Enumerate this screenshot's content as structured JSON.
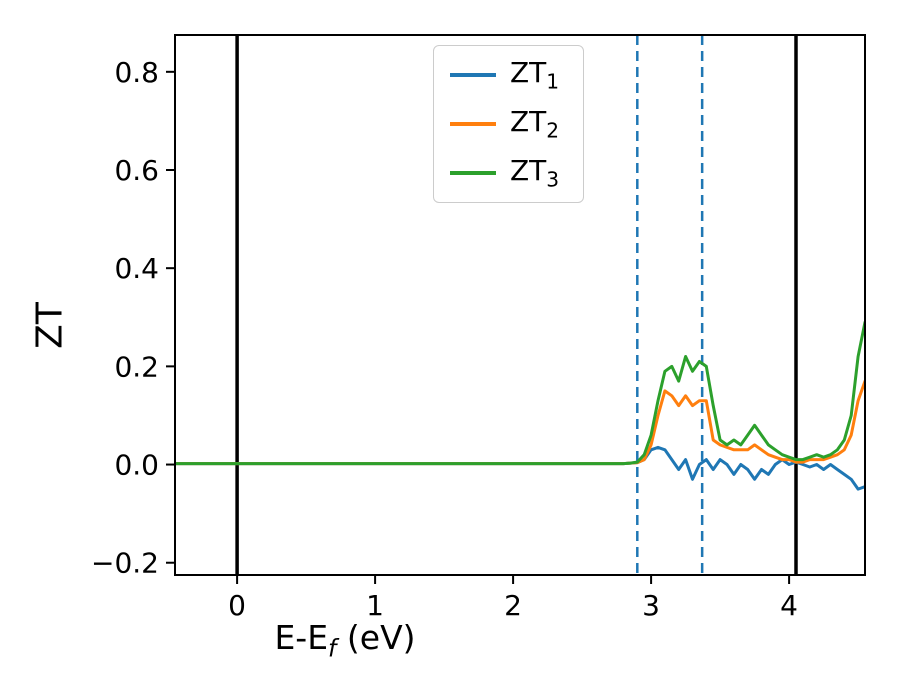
{
  "figure": {
    "background": "#ffffff"
  },
  "chart_data": {
    "type": "line",
    "title": "",
    "ylabel": "ZT",
    "xlabel_parts": {
      "prefix": "E-E",
      "sub": "f",
      "suffix": " (eV)"
    },
    "xlim": [
      -0.45,
      4.55
    ],
    "ylim": [
      -0.225,
      0.875
    ],
    "grid": false,
    "legend_position": "upper center",
    "x_ticks": [
      {
        "v": 0,
        "label": "0"
      },
      {
        "v": 1,
        "label": "1"
      },
      {
        "v": 2,
        "label": "2"
      },
      {
        "v": 3,
        "label": "3"
      },
      {
        "v": 4,
        "label": "4"
      }
    ],
    "y_ticks": [
      {
        "v": -0.2,
        "label": "−0.2"
      },
      {
        "v": 0.0,
        "label": "0.0"
      },
      {
        "v": 0.2,
        "label": "0.2"
      },
      {
        "v": 0.4,
        "label": "0.4"
      },
      {
        "v": 0.6,
        "label": "0.6"
      },
      {
        "v": 0.8,
        "label": "0.8"
      }
    ],
    "vlines_solid": {
      "x": [
        0.0,
        4.05
      ],
      "color": "#000000",
      "width": 3.5
    },
    "vlines_dashed": {
      "x": [
        2.9,
        3.37
      ],
      "color": "#1f77b4",
      "width": 2.5,
      "dash": "10 6"
    },
    "x": [
      -0.45,
      0.0,
      0.5,
      1.0,
      1.5,
      2.0,
      2.5,
      2.8,
      2.85,
      2.9,
      2.95,
      3.0,
      3.05,
      3.1,
      3.15,
      3.2,
      3.25,
      3.3,
      3.35,
      3.4,
      3.45,
      3.5,
      3.55,
      3.6,
      3.65,
      3.7,
      3.75,
      3.8,
      3.85,
      3.9,
      3.95,
      4.0,
      4.05,
      4.1,
      4.15,
      4.2,
      4.25,
      4.3,
      4.35,
      4.4,
      4.45,
      4.5,
      4.55
    ],
    "series": [
      {
        "name": "ZT1",
        "label_base": "ZT",
        "label_sub": "1",
        "color": "#1f77b4",
        "values": [
          0.002,
          0.002,
          0.002,
          0.002,
          0.002,
          0.002,
          0.002,
          0.002,
          0.003,
          0.004,
          0.01,
          0.03,
          0.035,
          0.03,
          0.01,
          -0.01,
          0.01,
          -0.03,
          0.0,
          0.01,
          -0.01,
          0.01,
          0.0,
          -0.02,
          0.0,
          -0.01,
          -0.03,
          -0.01,
          -0.02,
          0.0,
          0.01,
          0.0,
          0.005,
          0.0,
          -0.005,
          0.0,
          -0.01,
          0.0,
          -0.01,
          -0.02,
          -0.03,
          -0.05,
          -0.045
        ]
      },
      {
        "name": "ZT2",
        "label_base": "ZT",
        "label_sub": "2",
        "color": "#ff7f0e",
        "values": [
          0.002,
          0.002,
          0.002,
          0.002,
          0.002,
          0.002,
          0.002,
          0.002,
          0.003,
          0.004,
          0.01,
          0.04,
          0.1,
          0.15,
          0.14,
          0.12,
          0.14,
          0.12,
          0.13,
          0.13,
          0.05,
          0.04,
          0.035,
          0.03,
          0.03,
          0.03,
          0.04,
          0.03,
          0.02,
          0.015,
          0.01,
          0.01,
          0.005,
          0.005,
          0.01,
          0.01,
          0.01,
          0.015,
          0.02,
          0.03,
          0.06,
          0.13,
          0.17
        ]
      },
      {
        "name": "ZT3",
        "label_base": "ZT",
        "label_sub": "3",
        "color": "#2ca02c",
        "values": [
          0.002,
          0.002,
          0.002,
          0.002,
          0.002,
          0.002,
          0.002,
          0.002,
          0.003,
          0.005,
          0.02,
          0.06,
          0.13,
          0.19,
          0.2,
          0.17,
          0.22,
          0.19,
          0.21,
          0.2,
          0.12,
          0.05,
          0.04,
          0.05,
          0.04,
          0.06,
          0.08,
          0.06,
          0.04,
          0.03,
          0.02,
          0.015,
          0.01,
          0.01,
          0.015,
          0.02,
          0.015,
          0.02,
          0.03,
          0.05,
          0.1,
          0.22,
          0.29
        ]
      }
    ]
  }
}
